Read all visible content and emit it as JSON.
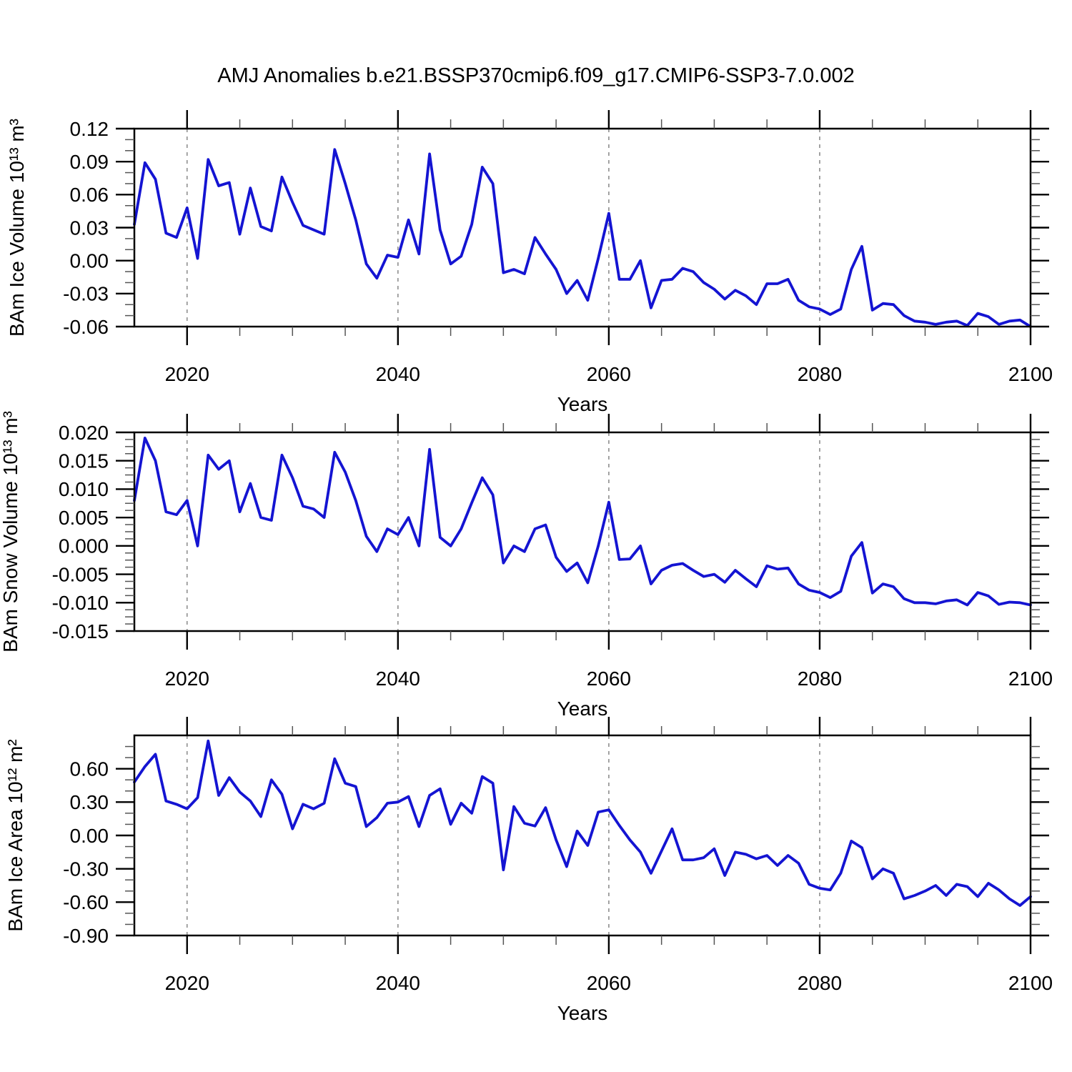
{
  "title": "AMJ Anomalies b.e21.BSSP370cmip6.f09_g17.CMIP6-SSP3-7.0.002",
  "colors": {
    "line": "#1414d2",
    "grid": "#999999",
    "axis": "#000000",
    "minor_tick": "#555555"
  },
  "chart_data": [
    {
      "type": "line",
      "title": "",
      "ylabel": "BAm Ice Volume 10¹³ m³",
      "xlabel": "Years",
      "ylim": [
        -0.06,
        0.12
      ],
      "xlim": [
        2015,
        2100
      ],
      "yticks": [
        0.12,
        0.09,
        0.06,
        0.03,
        0.0,
        -0.03,
        -0.06
      ],
      "ytick_labels": [
        "0.12",
        "0.09",
        "0.06",
        "0.03",
        "0.00",
        "-0.03",
        "-0.06"
      ],
      "y_minor_step": 0.01,
      "xticks": [
        2020,
        2040,
        2060,
        2080,
        2100
      ],
      "xtick_labels": [
        "2020",
        "2040",
        "2060",
        "2080",
        "2100"
      ],
      "x_minor_step": 5,
      "gridlines_x": [
        2020,
        2040,
        2060,
        2080
      ],
      "grid": "vertical-dashed",
      "legend": "none",
      "x": [
        2015,
        2016,
        2017,
        2018,
        2019,
        2020,
        2021,
        2022,
        2023,
        2024,
        2025,
        2026,
        2027,
        2028,
        2029,
        2030,
        2031,
        2032,
        2033,
        2034,
        2035,
        2036,
        2037,
        2038,
        2039,
        2040,
        2041,
        2042,
        2043,
        2044,
        2045,
        2046,
        2047,
        2048,
        2049,
        2050,
        2051,
        2052,
        2053,
        2054,
        2055,
        2056,
        2057,
        2058,
        2059,
        2060,
        2061,
        2062,
        2063,
        2064,
        2065,
        2066,
        2067,
        2068,
        2069,
        2070,
        2071,
        2072,
        2073,
        2074,
        2075,
        2076,
        2077,
        2078,
        2079,
        2080,
        2081,
        2082,
        2083,
        2084,
        2085,
        2086,
        2087,
        2088,
        2089,
        2090,
        2091,
        2092,
        2093,
        2094,
        2095,
        2096,
        2097,
        2098,
        2099,
        2100
      ],
      "values": [
        0.033,
        0.089,
        0.074,
        0.025,
        0.021,
        0.048,
        0.002,
        0.092,
        0.068,
        0.071,
        0.024,
        0.066,
        0.031,
        0.027,
        0.076,
        0.053,
        0.032,
        0.028,
        0.024,
        0.101,
        0.07,
        0.037,
        -0.003,
        -0.016,
        0.005,
        0.003,
        0.037,
        0.006,
        0.097,
        0.028,
        -0.003,
        0.004,
        0.033,
        0.085,
        0.07,
        -0.011,
        -0.008,
        -0.012,
        0.021,
        0.006,
        -0.008,
        -0.03,
        -0.018,
        -0.036,
        0.002,
        0.043,
        -0.017,
        -0.017,
        0.0,
        -0.043,
        -0.018,
        -0.017,
        -0.007,
        -0.01,
        -0.02,
        -0.026,
        -0.035,
        -0.027,
        -0.032,
        -0.04,
        -0.021,
        -0.021,
        -0.017,
        -0.036,
        -0.042,
        -0.044,
        -0.049,
        -0.044,
        -0.008,
        0.013,
        -0.045,
        -0.039,
        -0.04,
        -0.05,
        -0.055,
        -0.056,
        -0.058,
        -0.056,
        -0.055,
        -0.059,
        -0.048,
        -0.051,
        -0.058,
        -0.055,
        -0.054,
        -0.06
      ]
    },
    {
      "type": "line",
      "title": "",
      "ylabel": "BAm Snow Volume 10¹³ m³",
      "xlabel": "Years",
      "ylim": [
        -0.015,
        0.02
      ],
      "xlim": [
        2015,
        2100
      ],
      "yticks": [
        0.02,
        0.015,
        0.01,
        0.005,
        0.0,
        -0.005,
        -0.01,
        -0.015
      ],
      "ytick_labels": [
        "0.020",
        "0.015",
        "0.010",
        "0.005",
        "0.000",
        "-0.005",
        "-0.010",
        "-0.015"
      ],
      "y_minor_step": 0.00125,
      "xticks": [
        2020,
        2040,
        2060,
        2080,
        2100
      ],
      "xtick_labels": [
        "2020",
        "2040",
        "2060",
        "2080",
        "2100"
      ],
      "x_minor_step": 5,
      "gridlines_x": [
        2020,
        2040,
        2060,
        2080
      ],
      "grid": "vertical-dashed",
      "legend": "none",
      "x": [
        2015,
        2016,
        2017,
        2018,
        2019,
        2020,
        2021,
        2022,
        2023,
        2024,
        2025,
        2026,
        2027,
        2028,
        2029,
        2030,
        2031,
        2032,
        2033,
        2034,
        2035,
        2036,
        2037,
        2038,
        2039,
        2040,
        2041,
        2042,
        2043,
        2044,
        2045,
        2046,
        2047,
        2048,
        2049,
        2050,
        2051,
        2052,
        2053,
        2054,
        2055,
        2056,
        2057,
        2058,
        2059,
        2060,
        2061,
        2062,
        2063,
        2064,
        2065,
        2066,
        2067,
        2068,
        2069,
        2070,
        2071,
        2072,
        2073,
        2074,
        2075,
        2076,
        2077,
        2078,
        2079,
        2080,
        2081,
        2082,
        2083,
        2084,
        2085,
        2086,
        2087,
        2088,
        2089,
        2090,
        2091,
        2092,
        2093,
        2094,
        2095,
        2096,
        2097,
        2098,
        2099,
        2100
      ],
      "values": [
        0.008,
        0.019,
        0.015,
        0.006,
        0.0055,
        0.008,
        0.0,
        0.016,
        0.0135,
        0.015,
        0.006,
        0.011,
        0.005,
        0.0045,
        0.016,
        0.012,
        0.007,
        0.0065,
        0.005,
        0.0165,
        0.013,
        0.008,
        0.0017,
        -0.001,
        0.003,
        0.002,
        0.005,
        0.0,
        0.017,
        0.0015,
        0.0,
        0.003,
        0.0076,
        0.012,
        0.009,
        -0.003,
        0.0,
        -0.001,
        0.003,
        0.0037,
        -0.002,
        -0.0045,
        -0.003,
        -0.0065,
        0.0,
        0.0077,
        -0.0024,
        -0.0023,
        0.0,
        -0.0067,
        -0.0043,
        -0.0034,
        -0.0031,
        -0.0043,
        -0.0054,
        -0.005,
        -0.0064,
        -0.0043,
        -0.0058,
        -0.0072,
        -0.0035,
        -0.0041,
        -0.0039,
        -0.0067,
        -0.0078,
        -0.0082,
        -0.0091,
        -0.008,
        -0.0018,
        0.0006,
        -0.0083,
        -0.0067,
        -0.0072,
        -0.0093,
        -0.01,
        -0.01,
        -0.0102,
        -0.0097,
        -0.0095,
        -0.0104,
        -0.0082,
        -0.0088,
        -0.0103,
        -0.0099,
        -0.01,
        -0.0104
      ]
    },
    {
      "type": "line",
      "title": "",
      "ylabel": "BAm Ice Area 10¹² m²",
      "xlabel": "Years",
      "ylim": [
        -0.9,
        0.9
      ],
      "xlim": [
        2015,
        2100
      ],
      "yticks": [
        0.6,
        0.3,
        0.0,
        -0.3,
        -0.6,
        -0.9
      ],
      "ytick_labels": [
        "0.60",
        "0.30",
        "0.00",
        "-0.30",
        "-0.60",
        "-0.90"
      ],
      "y_minor_step": 0.1,
      "xticks": [
        2020,
        2040,
        2060,
        2080,
        2100
      ],
      "xtick_labels": [
        "2020",
        "2040",
        "2060",
        "2080",
        "2100"
      ],
      "x_minor_step": 5,
      "gridlines_x": [
        2020,
        2040,
        2060,
        2080
      ],
      "grid": "vertical-dashed",
      "legend": "none",
      "x": [
        2015,
        2016,
        2017,
        2018,
        2019,
        2020,
        2021,
        2022,
        2023,
        2024,
        2025,
        2026,
        2027,
        2028,
        2029,
        2030,
        2031,
        2032,
        2033,
        2034,
        2035,
        2036,
        2037,
        2038,
        2039,
        2040,
        2041,
        2042,
        2043,
        2044,
        2045,
        2046,
        2047,
        2048,
        2049,
        2050,
        2051,
        2052,
        2053,
        2054,
        2055,
        2056,
        2057,
        2058,
        2059,
        2060,
        2061,
        2062,
        2063,
        2064,
        2065,
        2066,
        2067,
        2068,
        2069,
        2070,
        2071,
        2072,
        2073,
        2074,
        2075,
        2076,
        2077,
        2078,
        2079,
        2080,
        2081,
        2082,
        2083,
        2084,
        2085,
        2086,
        2087,
        2088,
        2089,
        2090,
        2091,
        2092,
        2093,
        2094,
        2095,
        2096,
        2097,
        2098,
        2099,
        2100
      ],
      "values": [
        0.48,
        0.62,
        0.73,
        0.31,
        0.28,
        0.24,
        0.34,
        0.85,
        0.36,
        0.52,
        0.39,
        0.31,
        0.17,
        0.5,
        0.37,
        0.06,
        0.28,
        0.24,
        0.29,
        0.69,
        0.47,
        0.44,
        0.08,
        0.16,
        0.29,
        0.3,
        0.35,
        0.08,
        0.36,
        0.42,
        0.1,
        0.29,
        0.2,
        0.53,
        0.47,
        -0.31,
        0.26,
        0.11,
        0.085,
        0.25,
        -0.04,
        -0.28,
        0.04,
        -0.09,
        0.21,
        0.23,
        0.09,
        -0.04,
        -0.15,
        -0.34,
        -0.14,
        0.06,
        -0.22,
        -0.22,
        -0.2,
        -0.12,
        -0.36,
        -0.15,
        -0.17,
        -0.21,
        -0.18,
        -0.27,
        -0.18,
        -0.25,
        -0.44,
        -0.475,
        -0.49,
        -0.34,
        -0.05,
        -0.11,
        -0.39,
        -0.3,
        -0.34,
        -0.57,
        -0.54,
        -0.5,
        -0.45,
        -0.54,
        -0.44,
        -0.46,
        -0.55,
        -0.43,
        -0.49,
        -0.57,
        -0.63,
        -0.55
      ]
    }
  ]
}
